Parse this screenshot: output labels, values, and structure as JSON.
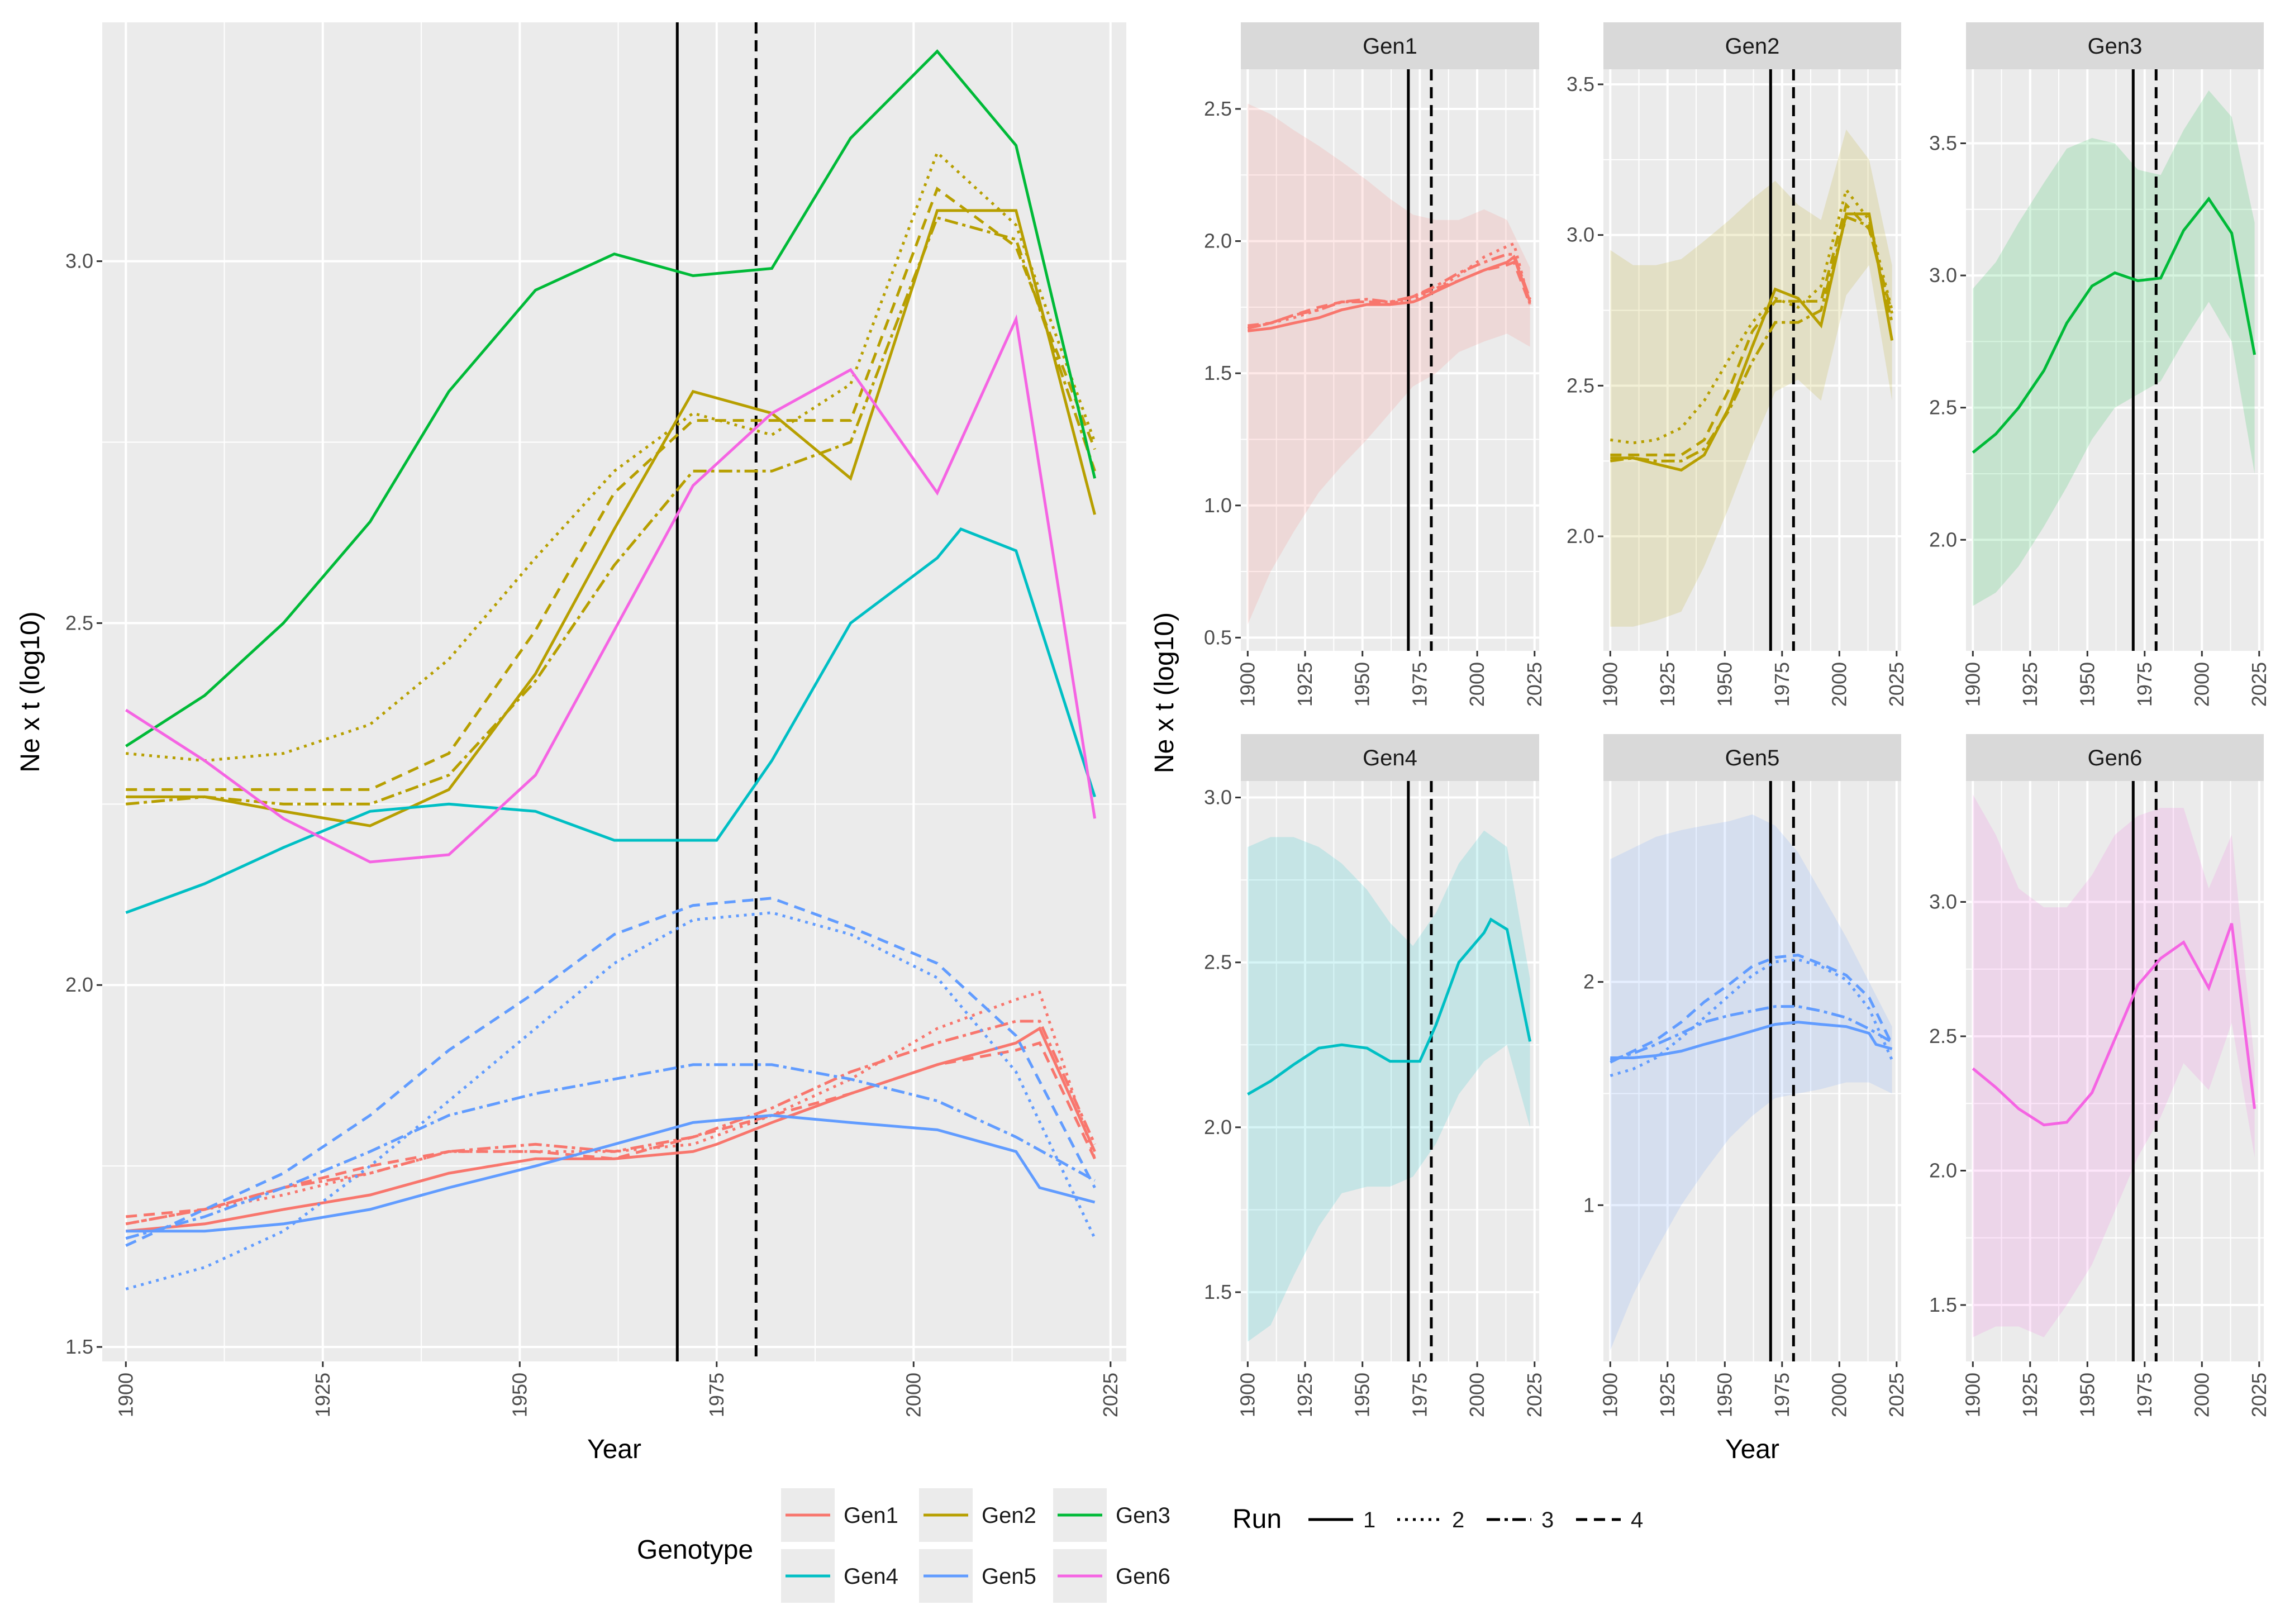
{
  "chart_data": {
    "type": "line",
    "description_title": "",
    "x_label": "Year",
    "y_label": "Ne x t (log10)",
    "x_ticks": [
      1900,
      1925,
      1950,
      1975,
      2000,
      2025
    ],
    "x_range": [
      1897,
      2027
    ],
    "event_lines": [
      {
        "year": 1970,
        "style": "solid"
      },
      {
        "year": 1980,
        "style": "dashed"
      }
    ],
    "genotype_colors": {
      "Gen1": "#F8766D",
      "Gen2": "#B79F00",
      "Gen3": "#00BA38",
      "Gen4": "#00BFC4",
      "Gen5": "#619CFF",
      "Gen6": "#F564E3"
    },
    "run_styles": {
      "1": "solid",
      "2": "dotted",
      "3": "dashdot",
      "4": "dashed"
    },
    "main_panel": {
      "y_range": [
        1.48,
        3.33
      ],
      "y_ticks": [
        "1.5",
        "2.0",
        "2.5",
        "3.0"
      ]
    },
    "legend": {
      "genotype_title": "Genotype",
      "genotypes": [
        "Gen1",
        "Gen2",
        "Gen3",
        "Gen4",
        "Gen5",
        "Gen6"
      ],
      "run_title": "Run",
      "runs": [
        "1",
        "2",
        "3",
        "4"
      ]
    },
    "series": [
      {
        "genotype": "Gen1",
        "run": "1",
        "x": [
          1900,
          1910,
          1920,
          1931,
          1941,
          1952,
          1962,
          1972,
          1975,
          1982,
          1992,
          2003,
          2013,
          2016,
          2023
        ],
        "y": [
          1.66,
          1.67,
          1.69,
          1.71,
          1.74,
          1.76,
          1.76,
          1.77,
          1.78,
          1.81,
          1.85,
          1.89,
          1.92,
          1.94,
          1.77
        ]
      },
      {
        "genotype": "Gen1",
        "run": "2",
        "x": [
          1900,
          1910,
          1920,
          1931,
          1941,
          1952,
          1962,
          1972,
          1982,
          1992,
          2003,
          2013,
          2016,
          2023
        ],
        "y": [
          1.67,
          1.69,
          1.71,
          1.74,
          1.77,
          1.77,
          1.77,
          1.78,
          1.82,
          1.87,
          1.94,
          1.98,
          1.99,
          1.76
        ]
      },
      {
        "genotype": "Gen1",
        "run": "3",
        "x": [
          1900,
          1910,
          1920,
          1931,
          1941,
          1952,
          1962,
          1972,
          1982,
          1992,
          2003,
          2013,
          2016,
          2023
        ],
        "y": [
          1.67,
          1.69,
          1.72,
          1.74,
          1.77,
          1.78,
          1.77,
          1.79,
          1.83,
          1.88,
          1.92,
          1.95,
          1.95,
          1.78
        ]
      },
      {
        "genotype": "Gen1",
        "run": "4",
        "x": [
          1900,
          1910,
          1920,
          1931,
          1941,
          1952,
          1962,
          1972,
          1982,
          1992,
          2003,
          2013,
          2016,
          2023
        ],
        "y": [
          1.68,
          1.69,
          1.72,
          1.75,
          1.77,
          1.77,
          1.76,
          1.79,
          1.82,
          1.85,
          1.89,
          1.91,
          1.92,
          1.76
        ]
      },
      {
        "genotype": "Gen2",
        "run": "1",
        "x": [
          1900,
          1910,
          1920,
          1931,
          1941,
          1952,
          1962,
          1972,
          1982,
          1992,
          2003,
          2013,
          2023
        ],
        "y": [
          2.26,
          2.26,
          2.24,
          2.22,
          2.27,
          2.43,
          2.63,
          2.82,
          2.79,
          2.7,
          3.07,
          3.07,
          2.65
        ]
      },
      {
        "genotype": "Gen2",
        "run": "2",
        "x": [
          1900,
          1910,
          1920,
          1931,
          1941,
          1952,
          1962,
          1972,
          1982,
          1992,
          2003,
          2013,
          2023
        ],
        "y": [
          2.32,
          2.31,
          2.32,
          2.36,
          2.45,
          2.59,
          2.71,
          2.79,
          2.76,
          2.83,
          3.15,
          3.05,
          2.75
        ]
      },
      {
        "genotype": "Gen2",
        "run": "3",
        "x": [
          1900,
          1910,
          1920,
          1931,
          1941,
          1952,
          1962,
          1972,
          1982,
          1992,
          2003,
          2013,
          2023
        ],
        "y": [
          2.25,
          2.26,
          2.25,
          2.25,
          2.29,
          2.42,
          2.58,
          2.71,
          2.71,
          2.75,
          3.06,
          3.03,
          2.71
        ]
      },
      {
        "genotype": "Gen2",
        "run": "4",
        "x": [
          1900,
          1910,
          1920,
          1931,
          1941,
          1952,
          1962,
          1972,
          1982,
          1992,
          2003,
          2013,
          2023
        ],
        "y": [
          2.27,
          2.27,
          2.27,
          2.27,
          2.32,
          2.49,
          2.68,
          2.78,
          2.78,
          2.78,
          3.1,
          3.02,
          2.74
        ]
      },
      {
        "genotype": "Gen3",
        "run": "1",
        "x": [
          1900,
          1910,
          1920,
          1931,
          1941,
          1952,
          1962,
          1972,
          1982,
          1992,
          2003,
          2013,
          2023
        ],
        "y": [
          2.33,
          2.4,
          2.5,
          2.64,
          2.82,
          2.96,
          3.01,
          2.98,
          2.99,
          3.17,
          3.29,
          3.16,
          2.7
        ]
      },
      {
        "genotype": "Gen4",
        "run": "1",
        "x": [
          1900,
          1910,
          1920,
          1931,
          1941,
          1952,
          1962,
          1972,
          1975,
          1982,
          1992,
          2003,
          2006,
          2013,
          2023
        ],
        "y": [
          2.1,
          2.14,
          2.19,
          2.24,
          2.25,
          2.24,
          2.2,
          2.2,
          2.2,
          2.31,
          2.5,
          2.59,
          2.63,
          2.6,
          2.26
        ]
      },
      {
        "genotype": "Gen5",
        "run": "1",
        "x": [
          1900,
          1910,
          1920,
          1931,
          1941,
          1952,
          1962,
          1972,
          1982,
          1992,
          2003,
          2013,
          2016,
          2023
        ],
        "y": [
          1.66,
          1.66,
          1.67,
          1.69,
          1.72,
          1.75,
          1.78,
          1.81,
          1.82,
          1.81,
          1.8,
          1.77,
          1.72,
          1.7
        ]
      },
      {
        "genotype": "Gen5",
        "run": "2",
        "x": [
          1900,
          1910,
          1920,
          1931,
          1941,
          1952,
          1962,
          1972,
          1982,
          1992,
          2003,
          2013,
          2023
        ],
        "y": [
          1.58,
          1.61,
          1.66,
          1.75,
          1.84,
          1.94,
          2.03,
          2.09,
          2.1,
          2.07,
          2.01,
          1.88,
          1.65
        ]
      },
      {
        "genotype": "Gen5",
        "run": "3",
        "x": [
          1900,
          1910,
          1920,
          1931,
          1941,
          1952,
          1962,
          1972,
          1982,
          1992,
          2003,
          2013,
          2023
        ],
        "y": [
          1.65,
          1.68,
          1.72,
          1.77,
          1.82,
          1.85,
          1.87,
          1.89,
          1.89,
          1.87,
          1.84,
          1.79,
          1.73
        ]
      },
      {
        "genotype": "Gen5",
        "run": "4",
        "x": [
          1900,
          1910,
          1920,
          1931,
          1941,
          1952,
          1962,
          1972,
          1982,
          1992,
          2003,
          2013,
          2023
        ],
        "y": [
          1.64,
          1.69,
          1.74,
          1.82,
          1.91,
          1.99,
          2.07,
          2.11,
          2.12,
          2.08,
          2.03,
          1.93,
          1.72
        ]
      },
      {
        "genotype": "Gen6",
        "run": "1",
        "x": [
          1900,
          1910,
          1920,
          1931,
          1941,
          1952,
          1962,
          1972,
          1982,
          1992,
          2003,
          2013,
          2023
        ],
        "y": [
          2.38,
          2.31,
          2.23,
          2.17,
          2.18,
          2.29,
          2.49,
          2.69,
          2.79,
          2.85,
          2.68,
          2.92,
          2.23
        ]
      }
    ],
    "facets": [
      {
        "label": "Gen1",
        "y_range": [
          0.45,
          2.65
        ],
        "y_ticks": [
          "0.5",
          "1.0",
          "1.5",
          "2.0",
          "2.5"
        ],
        "ribbon": {
          "x": [
            1900,
            1910,
            1920,
            1931,
            1941,
            1952,
            1962,
            1972,
            1982,
            1992,
            2003,
            2013,
            2023
          ],
          "lower": [
            0.55,
            0.75,
            0.9,
            1.05,
            1.15,
            1.25,
            1.35,
            1.45,
            1.5,
            1.58,
            1.62,
            1.65,
            1.6
          ],
          "upper": [
            2.52,
            2.48,
            2.42,
            2.36,
            2.3,
            2.23,
            2.16,
            2.1,
            2.08,
            2.08,
            2.12,
            2.08,
            1.9
          ]
        }
      },
      {
        "label": "Gen2",
        "y_range": [
          1.62,
          3.55
        ],
        "y_ticks": [
          "2.0",
          "2.5",
          "3.0",
          "3.5"
        ],
        "ribbon": {
          "x": [
            1900,
            1910,
            1920,
            1931,
            1941,
            1952,
            1962,
            1972,
            1982,
            1992,
            2003,
            2013,
            2023
          ],
          "lower": [
            1.7,
            1.7,
            1.72,
            1.75,
            1.9,
            2.1,
            2.3,
            2.48,
            2.52,
            2.45,
            2.8,
            2.9,
            2.45
          ],
          "upper": [
            2.95,
            2.9,
            2.9,
            2.92,
            2.98,
            3.05,
            3.12,
            3.18,
            3.1,
            3.05,
            3.35,
            3.25,
            2.9
          ]
        }
      },
      {
        "label": "Gen3",
        "y_range": [
          1.58,
          3.78
        ],
        "y_ticks": [
          "2.0",
          "2.5",
          "3.0",
          "3.5"
        ],
        "ribbon": {
          "x": [
            1900,
            1910,
            1920,
            1931,
            1941,
            1952,
            1962,
            1972,
            1982,
            1992,
            2003,
            2013,
            2023
          ],
          "lower": [
            1.75,
            1.8,
            1.9,
            2.05,
            2.2,
            2.38,
            2.5,
            2.55,
            2.6,
            2.75,
            2.9,
            2.75,
            2.25
          ],
          "upper": [
            2.95,
            3.05,
            3.2,
            3.35,
            3.48,
            3.52,
            3.5,
            3.4,
            3.38,
            3.55,
            3.7,
            3.6,
            3.2
          ]
        }
      },
      {
        "label": "Gen4",
        "y_range": [
          1.29,
          3.05
        ],
        "y_ticks": [
          "1.5",
          "2.0",
          "2.5",
          "3.0"
        ],
        "ribbon": {
          "x": [
            1900,
            1910,
            1920,
            1931,
            1941,
            1952,
            1962,
            1972,
            1982,
            1992,
            2003,
            2013,
            2023
          ],
          "lower": [
            1.35,
            1.4,
            1.55,
            1.7,
            1.8,
            1.82,
            1.82,
            1.85,
            1.95,
            2.1,
            2.2,
            2.25,
            2.0
          ],
          "upper": [
            2.85,
            2.88,
            2.88,
            2.85,
            2.8,
            2.72,
            2.62,
            2.55,
            2.65,
            2.8,
            2.9,
            2.85,
            2.45
          ]
        }
      },
      {
        "label": "Gen5",
        "y_range": [
          0.3,
          2.9
        ],
        "y_ticks": [
          "1",
          "2"
        ],
        "ribbon": {
          "x": [
            1900,
            1910,
            1920,
            1931,
            1941,
            1952,
            1962,
            1972,
            1982,
            1992,
            2003,
            2013,
            2023
          ],
          "lower": [
            0.35,
            0.6,
            0.8,
            1.0,
            1.15,
            1.3,
            1.4,
            1.48,
            1.5,
            1.52,
            1.55,
            1.55,
            1.5
          ],
          "upper": [
            2.55,
            2.6,
            2.65,
            2.68,
            2.7,
            2.72,
            2.75,
            2.7,
            2.58,
            2.4,
            2.2,
            2.0,
            1.8
          ]
        }
      },
      {
        "label": "Gen6",
        "y_range": [
          1.29,
          3.45
        ],
        "y_ticks": [
          "1.5",
          "2.0",
          "2.5",
          "3.0"
        ],
        "ribbon": {
          "x": [
            1900,
            1910,
            1920,
            1931,
            1941,
            1952,
            1962,
            1972,
            1982,
            1992,
            2003,
            2013,
            2023
          ],
          "lower": [
            1.38,
            1.42,
            1.42,
            1.38,
            1.5,
            1.65,
            1.85,
            2.05,
            2.2,
            2.4,
            2.3,
            2.55,
            2.05
          ],
          "upper": [
            3.4,
            3.25,
            3.05,
            2.98,
            2.98,
            3.1,
            3.25,
            3.32,
            3.35,
            3.35,
            3.05,
            3.25,
            2.4
          ]
        }
      }
    ]
  }
}
